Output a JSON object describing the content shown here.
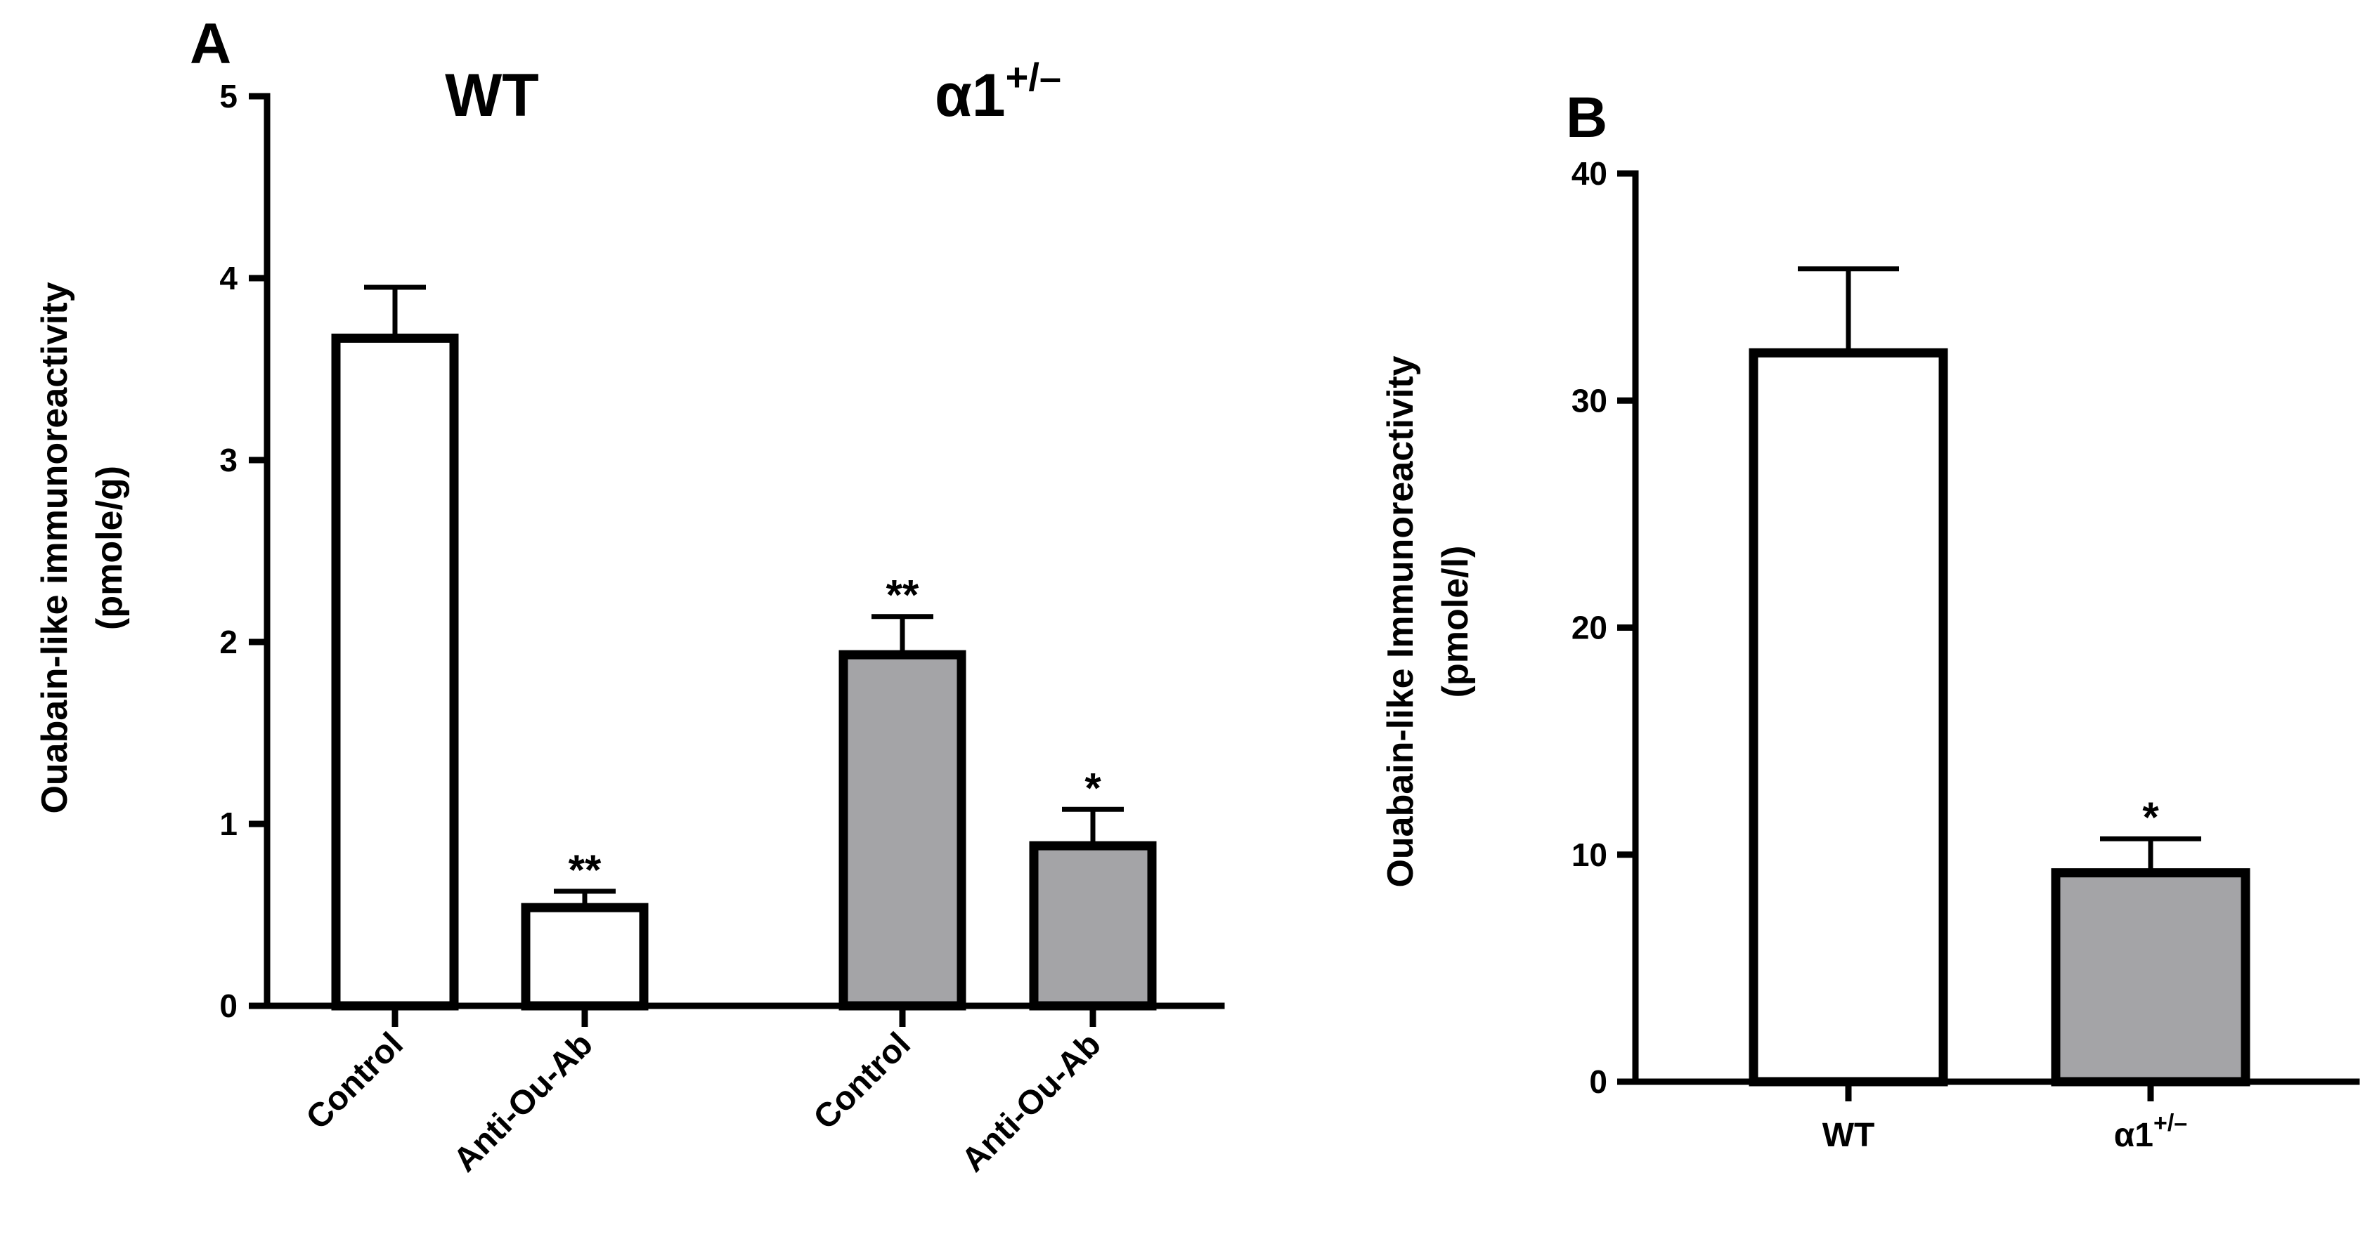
{
  "chart_data": [
    {
      "panel": "A",
      "type": "bar",
      "ylabel": "Ouabain-like immunoreactivity",
      "ylabel_unit": "(pmole/g)",
      "ylim": [
        0,
        5
      ],
      "yticks": [
        "0",
        "1",
        "2",
        "3",
        "4",
        "5"
      ],
      "groups": [
        {
          "title": "WT",
          "title_sup": "",
          "bars": [
            {
              "category": "Control",
              "value": 3.67,
              "error": 0.28,
              "fill": "#ffffff",
              "sig": ""
            },
            {
              "category": "Anti-Ou-Ab",
              "value": 0.54,
              "error": 0.09,
              "fill": "#ffffff",
              "sig": "**"
            }
          ]
        },
        {
          "title": "α1",
          "title_sup": "+/–",
          "bars": [
            {
              "category": "Control",
              "value": 1.93,
              "error": 0.21,
              "fill": "#a4a4a7",
              "sig": "**"
            },
            {
              "category": "Anti-Ou-Ab",
              "value": 0.88,
              "error": 0.2,
              "fill": "#a4a4a7",
              "sig": "*"
            }
          ]
        }
      ]
    },
    {
      "panel": "B",
      "type": "bar",
      "ylabel": "Ouabain-like Immunoreactivity",
      "ylabel_unit": "(pmole/l)",
      "ylim": [
        0,
        40
      ],
      "yticks": [
        "0",
        "10",
        "20",
        "30",
        "40"
      ],
      "bars": [
        {
          "category": "WT",
          "category_sup": "",
          "value": 32.1,
          "error": 3.7,
          "fill": "#ffffff",
          "sig": ""
        },
        {
          "category": "α1",
          "category_sup": "+/–",
          "value": 9.2,
          "error": 1.5,
          "fill": "#a4a4a7",
          "sig": "*"
        }
      ]
    }
  ]
}
